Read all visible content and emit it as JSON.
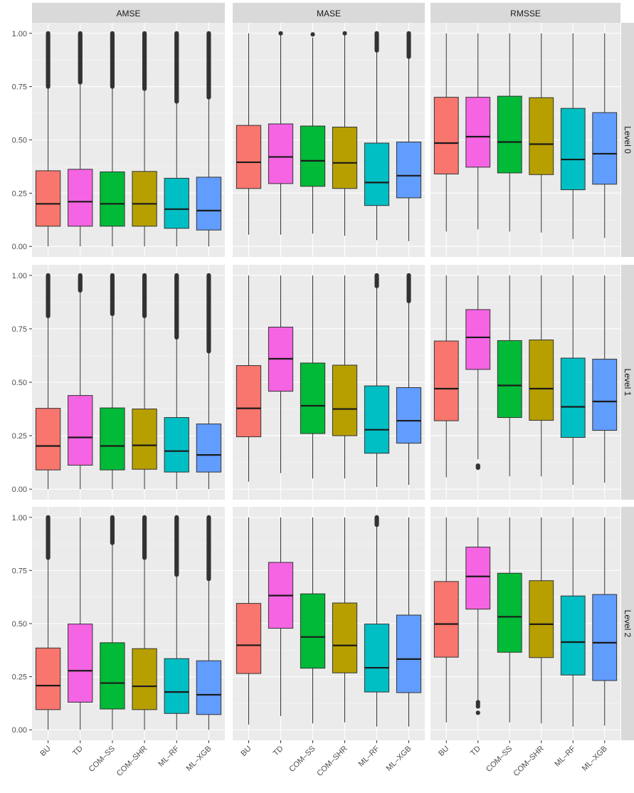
{
  "chart_data": {
    "type": "boxplot",
    "facet_columns": [
      "AMSE",
      "MASE",
      "RMSSE"
    ],
    "facet_rows": [
      "Level 0",
      "Level 1",
      "Level 2"
    ],
    "categories": [
      "BU",
      "TD",
      "COM–SS",
      "COM–SHR",
      "ML–RF",
      "ML–XGB"
    ],
    "colors": [
      "#F8766D",
      "#F564E3",
      "#00BA38",
      "#B79F00",
      "#00BFC4",
      "#619CFF"
    ],
    "ylim": [
      0,
      1
    ],
    "yticks": [
      0.0,
      0.25,
      0.5,
      0.75,
      1.0
    ],
    "ytick_labels": [
      "0.00",
      "0.25",
      "0.50",
      "0.75",
      "1.00"
    ],
    "grid": true,
    "legend": "none",
    "boxes": [
      [
        [
          {
            "whisker_low": 0.0,
            "q1": 0.095,
            "median": 0.2,
            "q3": 0.355,
            "whisker_high": 0.74,
            "outliers_from": 0.75,
            "outliers_to": 1.0
          },
          {
            "whisker_low": 0.0,
            "q1": 0.095,
            "median": 0.21,
            "q3": 0.362,
            "whisker_high": 0.76,
            "outliers_from": 0.77,
            "outliers_to": 1.0
          },
          {
            "whisker_low": 0.0,
            "q1": 0.095,
            "median": 0.2,
            "q3": 0.35,
            "whisker_high": 0.74,
            "outliers_from": 0.75,
            "outliers_to": 1.0
          },
          {
            "whisker_low": 0.0,
            "q1": 0.095,
            "median": 0.2,
            "q3": 0.352,
            "whisker_high": 0.74,
            "outliers_from": 0.74,
            "outliers_to": 1.0
          },
          {
            "whisker_low": 0.0,
            "q1": 0.085,
            "median": 0.175,
            "q3": 0.32,
            "whisker_high": 0.67,
            "outliers_from": 0.68,
            "outliers_to": 1.0
          },
          {
            "whisker_low": 0.0,
            "q1": 0.077,
            "median": 0.168,
            "q3": 0.325,
            "whisker_high": 0.69,
            "outliers_from": 0.7,
            "outliers_to": 1.0
          }
        ],
        [
          {
            "whisker_low": 0.055,
            "q1": 0.272,
            "median": 0.395,
            "q3": 0.568,
            "whisker_high": 1.0,
            "outliers": []
          },
          {
            "whisker_low": 0.055,
            "q1": 0.295,
            "median": 0.42,
            "q3": 0.575,
            "whisker_high": 0.99,
            "outliers": [
              1.0
            ]
          },
          {
            "whisker_low": 0.06,
            "q1": 0.282,
            "median": 0.402,
            "q3": 0.565,
            "whisker_high": 0.98,
            "outliers": [
              0.995
            ]
          },
          {
            "whisker_low": 0.05,
            "q1": 0.272,
            "median": 0.392,
            "q3": 0.56,
            "whisker_high": 0.99,
            "outliers": [
              1.0
            ]
          },
          {
            "whisker_low": 0.03,
            "q1": 0.192,
            "median": 0.3,
            "q3": 0.485,
            "whisker_high": 0.91,
            "outliers_from": 0.92,
            "outliers_to": 1.0
          },
          {
            "whisker_low": 0.025,
            "q1": 0.228,
            "median": 0.332,
            "q3": 0.49,
            "whisker_high": 0.88,
            "outliers_from": 0.89,
            "outliers_to": 1.0
          }
        ],
        [
          {
            "whisker_low": 0.07,
            "q1": 0.34,
            "median": 0.485,
            "q3": 0.7,
            "whisker_high": 1.0,
            "outliers": []
          },
          {
            "whisker_low": 0.08,
            "q1": 0.372,
            "median": 0.515,
            "q3": 0.7,
            "whisker_high": 1.0,
            "outliers": []
          },
          {
            "whisker_low": 0.07,
            "q1": 0.345,
            "median": 0.49,
            "q3": 0.705,
            "whisker_high": 1.0,
            "outliers": []
          },
          {
            "whisker_low": 0.065,
            "q1": 0.337,
            "median": 0.48,
            "q3": 0.698,
            "whisker_high": 1.0,
            "outliers": []
          },
          {
            "whisker_low": 0.035,
            "q1": 0.266,
            "median": 0.408,
            "q3": 0.648,
            "whisker_high": 1.0,
            "outliers": []
          },
          {
            "whisker_low": 0.04,
            "q1": 0.292,
            "median": 0.435,
            "q3": 0.628,
            "whisker_high": 1.0,
            "outliers": []
          }
        ]
      ],
      [
        [
          {
            "whisker_low": 0.0,
            "q1": 0.09,
            "median": 0.202,
            "q3": 0.378,
            "whisker_high": 0.8,
            "outliers_from": 0.81,
            "outliers_to": 1.0
          },
          {
            "whisker_low": 0.0,
            "q1": 0.112,
            "median": 0.242,
            "q3": 0.438,
            "whisker_high": 0.92,
            "outliers_from": 0.93,
            "outliers_to": 1.0
          },
          {
            "whisker_low": 0.0,
            "q1": 0.09,
            "median": 0.202,
            "q3": 0.38,
            "whisker_high": 0.81,
            "outliers_from": 0.82,
            "outliers_to": 1.0
          },
          {
            "whisker_low": 0.0,
            "q1": 0.093,
            "median": 0.205,
            "q3": 0.375,
            "whisker_high": 0.8,
            "outliers_from": 0.81,
            "outliers_to": 1.0
          },
          {
            "whisker_low": 0.0,
            "q1": 0.08,
            "median": 0.178,
            "q3": 0.335,
            "whisker_high": 0.7,
            "outliers_from": 0.71,
            "outliers_to": 1.0
          },
          {
            "whisker_low": 0.0,
            "q1": 0.08,
            "median": 0.16,
            "q3": 0.305,
            "whisker_high": 0.64,
            "outliers_from": 0.645,
            "outliers_to": 1.0
          }
        ],
        [
          {
            "whisker_low": 0.035,
            "q1": 0.245,
            "median": 0.378,
            "q3": 0.578,
            "whisker_high": 1.0,
            "outliers": []
          },
          {
            "whisker_low": 0.075,
            "q1": 0.458,
            "median": 0.61,
            "q3": 0.758,
            "whisker_high": 1.0,
            "outliers": []
          },
          {
            "whisker_low": 0.05,
            "q1": 0.26,
            "median": 0.39,
            "q3": 0.59,
            "whisker_high": 1.0,
            "outliers": []
          },
          {
            "whisker_low": 0.05,
            "q1": 0.25,
            "median": 0.375,
            "q3": 0.58,
            "whisker_high": 1.0,
            "outliers": []
          },
          {
            "whisker_low": 0.01,
            "q1": 0.168,
            "median": 0.278,
            "q3": 0.483,
            "whisker_high": 0.94,
            "outliers_from": 0.95,
            "outliers_to": 1.0
          },
          {
            "whisker_low": 0.02,
            "q1": 0.215,
            "median": 0.32,
            "q3": 0.475,
            "whisker_high": 0.87,
            "outliers_from": 0.88,
            "outliers_to": 1.0
          }
        ],
        [
          {
            "whisker_low": 0.055,
            "q1": 0.32,
            "median": 0.47,
            "q3": 0.693,
            "whisker_high": 1.0,
            "outliers": []
          },
          {
            "whisker_low": 0.14,
            "q1": 0.56,
            "median": 0.71,
            "q3": 0.84,
            "whisker_high": 1.0,
            "outliers": [
              0.1,
              0.105,
              0.11
            ]
          },
          {
            "whisker_low": 0.06,
            "q1": 0.335,
            "median": 0.485,
            "q3": 0.695,
            "whisker_high": 1.0,
            "outliers": []
          },
          {
            "whisker_low": 0.06,
            "q1": 0.322,
            "median": 0.47,
            "q3": 0.698,
            "whisker_high": 1.0,
            "outliers": []
          },
          {
            "whisker_low": 0.02,
            "q1": 0.242,
            "median": 0.385,
            "q3": 0.613,
            "whisker_high": 1.0,
            "outliers": []
          },
          {
            "whisker_low": 0.03,
            "q1": 0.275,
            "median": 0.41,
            "q3": 0.608,
            "whisker_high": 1.0,
            "outliers": []
          }
        ]
      ],
      [
        [
          {
            "whisker_low": 0.0,
            "q1": 0.095,
            "median": 0.208,
            "q3": 0.385,
            "whisker_high": 0.8,
            "outliers_from": 0.81,
            "outliers_to": 1.0
          },
          {
            "whisker_low": 0.0,
            "q1": 0.13,
            "median": 0.278,
            "q3": 0.498,
            "whisker_high": 1.0,
            "outliers": []
          },
          {
            "whisker_low": 0.0,
            "q1": 0.098,
            "median": 0.22,
            "q3": 0.41,
            "whisker_high": 0.87,
            "outliers_from": 0.88,
            "outliers_to": 1.0
          },
          {
            "whisker_low": 0.0,
            "q1": 0.095,
            "median": 0.205,
            "q3": 0.382,
            "whisker_high": 0.8,
            "outliers_from": 0.81,
            "outliers_to": 1.0
          },
          {
            "whisker_low": 0.0,
            "q1": 0.077,
            "median": 0.178,
            "q3": 0.335,
            "whisker_high": 0.72,
            "outliers_from": 0.73,
            "outliers_to": 1.0
          },
          {
            "whisker_low": 0.0,
            "q1": 0.072,
            "median": 0.165,
            "q3": 0.325,
            "whisker_high": 0.7,
            "outliers_from": 0.71,
            "outliers_to": 1.0
          }
        ],
        [
          {
            "whisker_low": 0.025,
            "q1": 0.265,
            "median": 0.398,
            "q3": 0.595,
            "whisker_high": 1.0,
            "outliers": []
          },
          {
            "whisker_low": 0.065,
            "q1": 0.478,
            "median": 0.632,
            "q3": 0.788,
            "whisker_high": 1.0,
            "outliers": []
          },
          {
            "whisker_low": 0.03,
            "q1": 0.29,
            "median": 0.437,
            "q3": 0.64,
            "whisker_high": 1.0,
            "outliers": []
          },
          {
            "whisker_low": 0.035,
            "q1": 0.268,
            "median": 0.397,
            "q3": 0.597,
            "whisker_high": 1.0,
            "outliers": []
          },
          {
            "whisker_low": 0.015,
            "q1": 0.178,
            "median": 0.292,
            "q3": 0.498,
            "whisker_high": 0.96,
            "outliers_from": 0.965,
            "outliers_to": 1.0
          },
          {
            "whisker_low": 0.015,
            "q1": 0.175,
            "median": 0.333,
            "q3": 0.54,
            "whisker_high": 1.0,
            "outliers": []
          }
        ],
        [
          {
            "whisker_low": 0.035,
            "q1": 0.342,
            "median": 0.498,
            "q3": 0.698,
            "whisker_high": 1.0,
            "outliers": []
          },
          {
            "whisker_low": 0.135,
            "q1": 0.568,
            "median": 0.722,
            "q3": 0.86,
            "whisker_high": 1.0,
            "outliers": [
              0.08,
              0.11,
              0.12,
              0.13
            ]
          },
          {
            "whisker_low": 0.035,
            "q1": 0.365,
            "median": 0.532,
            "q3": 0.737,
            "whisker_high": 1.0,
            "outliers": []
          },
          {
            "whisker_low": 0.03,
            "q1": 0.34,
            "median": 0.497,
            "q3": 0.702,
            "whisker_high": 1.0,
            "outliers": []
          },
          {
            "whisker_low": 0.015,
            "q1": 0.258,
            "median": 0.413,
            "q3": 0.63,
            "whisker_high": 1.0,
            "outliers": []
          },
          {
            "whisker_low": 0.02,
            "q1": 0.232,
            "median": 0.41,
            "q3": 0.637,
            "whisker_high": 1.0,
            "outliers": []
          }
        ]
      ]
    ]
  }
}
